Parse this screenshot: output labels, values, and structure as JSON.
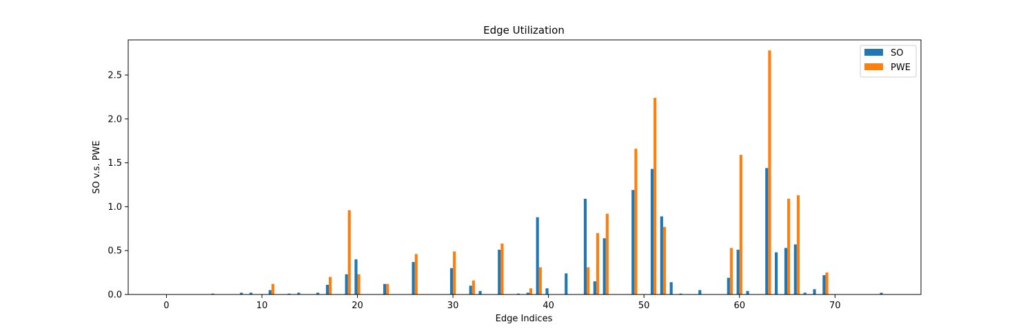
{
  "chart_data": {
    "type": "bar",
    "title": "Edge Utilization",
    "xlabel": "Edge Indices",
    "ylabel": "SO v.s. PWE",
    "xlim": [
      -4,
      79
    ],
    "ylim": [
      0,
      2.9
    ],
    "x_ticks": [
      0,
      10,
      20,
      30,
      40,
      50,
      60,
      70
    ],
    "y_ticks": [
      0.0,
      0.5,
      1.0,
      1.5,
      2.0,
      2.5
    ],
    "x_tick_labels": [
      "0",
      "10",
      "20",
      "30",
      "40",
      "50",
      "60",
      "70"
    ],
    "y_tick_labels": [
      "0.0",
      "0.5",
      "1.0",
      "1.5",
      "2.0",
      "2.5"
    ],
    "grid": false,
    "legend_position": "top-right",
    "bar_width": 0.3,
    "series": [
      {
        "name": "SO",
        "color": "#1f77b4",
        "values": [
          0,
          0,
          0,
          0,
          0,
          0.01,
          0,
          0,
          0.02,
          0.02,
          0,
          0.05,
          0,
          0.01,
          0.02,
          0,
          0.02,
          0.11,
          0,
          0.23,
          0.4,
          0,
          0,
          0.12,
          0,
          0,
          0.37,
          0,
          0,
          0,
          0.3,
          0,
          0.1,
          0.04,
          0,
          0.51,
          0,
          0.01,
          0.02,
          0.88,
          0.07,
          0,
          0.24,
          0,
          1.09,
          0.15,
          0.64,
          0,
          0,
          1.19,
          0,
          1.43,
          0.89,
          0.14,
          0.01,
          0,
          0.05,
          0,
          0,
          0.19,
          0.51,
          0.04,
          0,
          1.44,
          0.48,
          0.53,
          0.57,
          0.02,
          0.06,
          0.22,
          0,
          0,
          0,
          0,
          0,
          0.02
        ]
      },
      {
        "name": "PWE",
        "color": "#ff7f0e",
        "values": [
          0,
          0,
          0,
          0,
          0,
          0,
          0,
          0,
          0,
          0,
          0,
          0.12,
          0,
          0,
          0,
          0,
          0,
          0.2,
          0,
          0.96,
          0.23,
          0,
          0,
          0.12,
          0,
          0,
          0.46,
          0,
          0,
          0,
          0.49,
          0,
          0.16,
          0,
          0,
          0.58,
          0,
          0,
          0.07,
          0.31,
          0,
          0,
          0,
          0,
          0.31,
          0.7,
          0.92,
          0,
          0,
          1.66,
          0,
          2.24,
          0.77,
          0,
          0,
          0,
          0,
          0,
          0,
          0.53,
          1.59,
          0,
          0,
          2.78,
          0,
          1.09,
          1.13,
          0,
          0,
          0.25,
          0,
          0,
          0,
          0,
          0,
          0
        ]
      }
    ]
  }
}
